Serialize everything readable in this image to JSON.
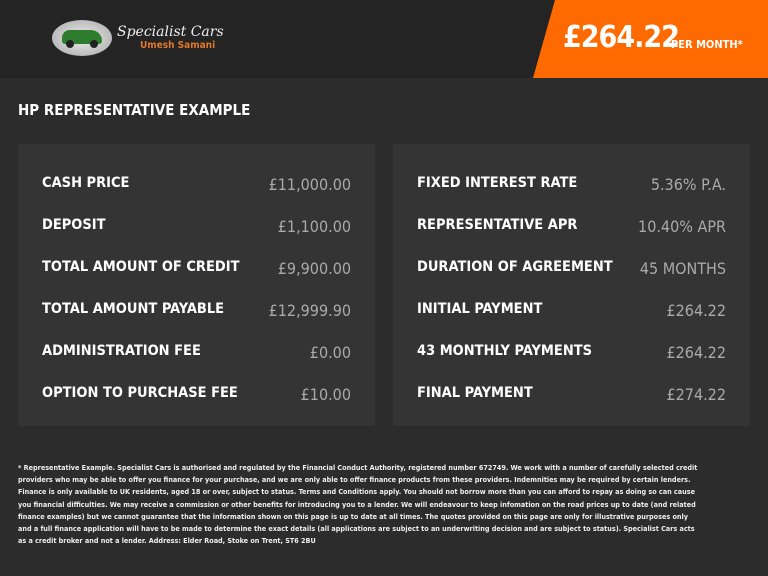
{
  "header": {
    "brand_name": "Specialist Cars",
    "brand_sub": "Umesh Samani",
    "price": "£264.22",
    "per_month": "PER MONTH*",
    "accent": "#ff6a00"
  },
  "title": "HP REPRESENTATIVE EXAMPLE",
  "left": [
    {
      "label": "CASH PRICE",
      "value": "£11,000.00"
    },
    {
      "label": "DEPOSIT",
      "value": "£1,100.00"
    },
    {
      "label": "TOTAL AMOUNT OF CREDIT",
      "value": "£9,900.00"
    },
    {
      "label": "TOTAL AMOUNT PAYABLE",
      "value": "£12,999.90"
    },
    {
      "label": "ADMINISTRATION FEE",
      "value": "£0.00"
    },
    {
      "label": "OPTION TO PURCHASE FEE",
      "value": "£10.00"
    }
  ],
  "right": [
    {
      "label": "FIXED INTEREST RATE",
      "value": "5.36% P.A."
    },
    {
      "label": "REPRESENTATIVE APR",
      "value": "10.40% APR"
    },
    {
      "label": "DURATION OF AGREEMENT",
      "value": "45 MONTHS"
    },
    {
      "label": "INITIAL PAYMENT",
      "value": "£264.22"
    },
    {
      "label": "43 MONTHLY PAYMENTS",
      "value": "£264.22"
    },
    {
      "label": "FINAL PAYMENT",
      "value": "£274.22"
    }
  ],
  "footnote": "* Representative Example. Specialist Cars is authorised and regulated by the Financial Conduct Authority, registered number 672749. We work with a number of carefully selected credit providers who may be able to offer you finance for your purchase, and we are only able to offer finance products from these providers. Indemnities may be required by certain lenders. Finance is only available to UK residents, aged 18 or over, subject to status. Terms and Conditions apply. You should not borrow more than you can afford to repay as doing so can cause you financial difficulties. We may receive a commission or other benefits for introducing you to a lender. We will endeavour to keep infomation on the road prices up to date (and related finance examples) but we cannot guarantee that the information shown on this page is up to date at all times. The quotes provided on this page are only for illustrative purposes only and a full finance application will have to be made to determine the exact details (all applications are subject to an underwriting decision and are subject to status). Specialist Cars acts as a credit broker and not a lender. Address: Elder Road, Stoke on Trent, ST6 2BU"
}
